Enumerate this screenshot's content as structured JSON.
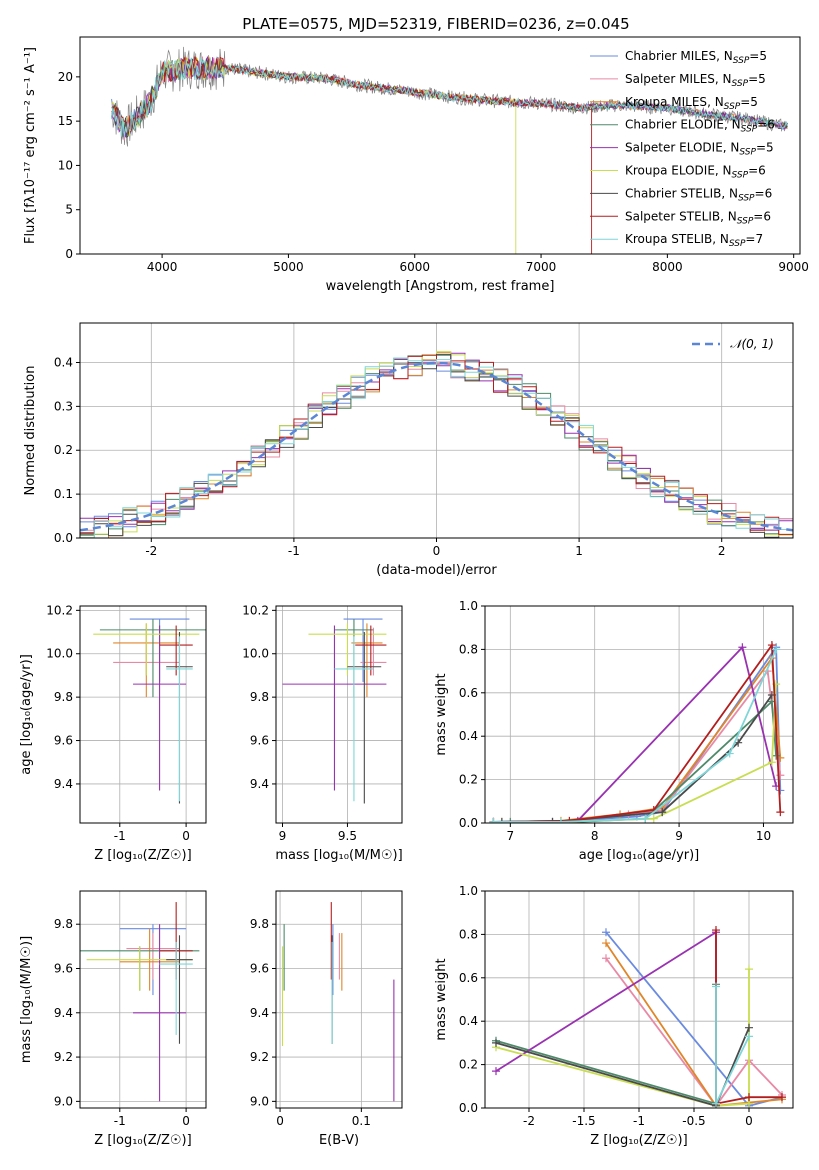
{
  "figure_title": "PLATE=0575, MJD=52319, FIBERID=0236, z=0.045",
  "models": [
    {
      "label": "Chabrier MILES",
      "nssp": "5",
      "color": "#6a8be0"
    },
    {
      "label": "Salpeter MILES",
      "nssp": "5",
      "color": "#e88aa6"
    },
    {
      "label": "Kroupa MILES",
      "nssp": "5",
      "color": "#e0862a"
    },
    {
      "label": "Chabrier ELODIE",
      "nssp": "6",
      "color": "#4e8a6a"
    },
    {
      "label": "Salpeter ELODIE",
      "nssp": "5",
      "color": "#9932b0"
    },
    {
      "label": "Kroupa ELODIE",
      "nssp": "6",
      "color": "#c9dd52"
    },
    {
      "label": "Chabrier STELIB",
      "nssp": "6",
      "color": "#4a4a4a"
    },
    {
      "label": "Salpeter STELIB",
      "nssp": "6",
      "color": "#b21e1e"
    },
    {
      "label": "Kroupa STELIB",
      "nssp": "7",
      "color": "#7fd6d8"
    }
  ],
  "chart_data": [
    {
      "id": "spectrum",
      "type": "line",
      "xlabel": "wavelength [Angstrom, rest frame]",
      "ylabel": "Flux [fλ10⁻¹⁷ erg cm⁻² s⁻¹ A⁻¹]",
      "xlim": [
        3350,
        9050
      ],
      "ylim": [
        0,
        24.5
      ],
      "xticks": [
        4000,
        5000,
        6000,
        7000,
        8000,
        9000
      ],
      "yticks": [
        0,
        5,
        10,
        15,
        20
      ],
      "legend_position": "top-right",
      "data_color": "#808080",
      "data_x": [
        3600,
        3700,
        3800,
        3900,
        4000,
        4200,
        4500,
        5000,
        5300,
        5600,
        6000,
        6300,
        6600,
        7000,
        7300,
        7600,
        8000,
        8300,
        8600,
        8900
      ],
      "data_y": [
        16.5,
        14,
        15.5,
        17,
        20.5,
        21,
        21,
        20,
        19.8,
        19,
        18.3,
        17.7,
        17.3,
        17,
        16.5,
        16.8,
        16.5,
        15.8,
        15.3,
        14.5
      ],
      "model_x_ranges": [
        [
          3600,
          8950
        ],
        [
          3600,
          8950
        ],
        [
          3900,
          8950
        ],
        [
          3600,
          8950
        ],
        [
          3600,
          8950
        ],
        [
          3600,
          6800
        ],
        [
          3600,
          8950
        ],
        [
          3600,
          7400
        ],
        [
          3600,
          8950
        ]
      ]
    },
    {
      "id": "residuals",
      "type": "histogram",
      "xlabel": "(data-model)/error",
      "ylabel": "Normed distribution",
      "xlim": [
        -2.5,
        2.5
      ],
      "ylim": [
        0,
        0.49
      ],
      "xticks": [
        -2,
        -1,
        0,
        1,
        2
      ],
      "yticks": [
        0.0,
        0.1,
        0.2,
        0.3,
        0.4
      ],
      "bin_width": 0.1,
      "reference_label": "𝒩(0, 1)",
      "reference_color": "#5b86d6",
      "legend_position": "top-right"
    },
    {
      "id": "age_vs_Z",
      "type": "errorbar",
      "xlabel": "Z [log₁₀(Z/Z☉)]",
      "ylabel": "age  [log₁₀(age/yr)]",
      "xlim": [
        -1.6,
        0.3
      ],
      "ylim": [
        9.22,
        10.22
      ],
      "xticks": [
        -1,
        0
      ],
      "yticks": [
        9.4,
        9.6,
        9.8,
        10.0,
        10.2
      ],
      "points": [
        {
          "x": -0.4,
          "xerr": 0.45,
          "y": 10.16,
          "ylo": 9.87,
          "yhi": 10.16
        },
        {
          "x": -0.6,
          "xerr": 0.5,
          "y": 9.96,
          "ylo": 9.9,
          "yhi": 10.12
        },
        {
          "x": -0.6,
          "xerr": 0.5,
          "y": 10.05,
          "ylo": 9.8,
          "yhi": 10.14
        },
        {
          "x": -0.5,
          "xerr": 0.8,
          "y": 10.11,
          "ylo": 9.8,
          "yhi": 10.16
        },
        {
          "x": -0.4,
          "xerr": 0.4,
          "y": 9.86,
          "ylo": 9.37,
          "yhi": 10.13
        },
        {
          "x": -0.6,
          "xerr": 0.8,
          "y": 10.09,
          "ylo": 9.9,
          "yhi": 10.14
        },
        {
          "x": -0.1,
          "xerr": 0.2,
          "y": 9.94,
          "ylo": 9.31,
          "yhi": 10.1
        },
        {
          "x": -0.15,
          "xerr": 0.25,
          "y": 10.04,
          "ylo": 9.9,
          "yhi": 10.13
        },
        {
          "x": -0.1,
          "xerr": 0.2,
          "y": 9.93,
          "ylo": 9.32,
          "yhi": 10.08
        }
      ]
    },
    {
      "id": "age_vs_mass",
      "type": "errorbar",
      "xlabel": "mass [log₁₀(M/M☉)]",
      "ylabel": "",
      "xlim": [
        8.95,
        9.92
      ],
      "ylim": [
        9.22,
        10.22
      ],
      "xticks": [
        9.0,
        9.5
      ],
      "yticks": [
        9.4,
        9.6,
        9.8,
        10.0,
        10.2
      ],
      "points": [
        {
          "x": 9.62,
          "xerr": 0.15,
          "y": 10.16,
          "ylo": 9.87,
          "yhi": 10.16
        },
        {
          "x": 9.7,
          "xerr": 0.1,
          "y": 9.96,
          "ylo": 9.9,
          "yhi": 10.12
        },
        {
          "x": 9.65,
          "xerr": 0.12,
          "y": 10.05,
          "ylo": 9.8,
          "yhi": 10.14
        },
        {
          "x": 9.55,
          "xerr": 0.15,
          "y": 10.11,
          "ylo": 9.8,
          "yhi": 10.16
        },
        {
          "x": 9.4,
          "xerr": 0.4,
          "y": 9.86,
          "ylo": 9.37,
          "yhi": 10.13
        },
        {
          "x": 9.5,
          "xerr": 0.3,
          "y": 10.09,
          "ylo": 9.9,
          "yhi": 10.14
        },
        {
          "x": 9.63,
          "xerr": 0.13,
          "y": 9.94,
          "ylo": 9.31,
          "yhi": 10.1
        },
        {
          "x": 9.68,
          "xerr": 0.12,
          "y": 10.04,
          "ylo": 9.9,
          "yhi": 10.13
        },
        {
          "x": 9.55,
          "xerr": 0.15,
          "y": 9.93,
          "ylo": 9.32,
          "yhi": 10.08
        }
      ]
    },
    {
      "id": "weight_vs_age",
      "type": "line",
      "xlabel": "age  [log₁₀(age/yr)]",
      "ylabel": "mass weight",
      "xlim": [
        6.7,
        10.35
      ],
      "ylim": [
        0,
        1.0
      ],
      "xticks": [
        7,
        8,
        9,
        10
      ],
      "yticks": [
        0.0,
        0.2,
        0.4,
        0.6,
        0.8,
        1.0
      ],
      "series": [
        {
          "x": [
            6.8,
            7.5,
            8.5,
            8.8,
            10.15,
            10.2
          ],
          "y": [
            0.005,
            0.005,
            0.03,
            0.05,
            0.81,
            0.15
          ]
        },
        {
          "x": [
            6.8,
            7.5,
            8.4,
            8.8,
            10.05,
            10.2
          ],
          "y": [
            0.005,
            0.005,
            0.04,
            0.06,
            0.7,
            0.22
          ]
        },
        {
          "x": [
            6.9,
            7.6,
            8.3,
            8.8,
            10.1,
            10.2
          ],
          "y": [
            0.005,
            0.01,
            0.04,
            0.07,
            0.76,
            0.3
          ]
        },
        {
          "x": [
            7.0,
            7.8,
            8.6,
            10.1,
            10.15
          ],
          "y": [
            0.005,
            0.005,
            0.02,
            0.56,
            0.31
          ]
        },
        {
          "x": [
            6.8,
            7.8,
            9.75,
            10.15
          ],
          "y": [
            0.005,
            0.01,
            0.81,
            0.17
          ]
        },
        {
          "x": [
            6.8,
            7.6,
            8.7,
            10.1,
            10.15
          ],
          "y": [
            0.005,
            0.005,
            0.02,
            0.28,
            0.64
          ]
        },
        {
          "x": [
            6.9,
            7.5,
            8.8,
            9.7,
            10.1
          ],
          "y": [
            0.005,
            0.005,
            0.05,
            0.37,
            0.59
          ]
        },
        {
          "x": [
            6.8,
            7.7,
            8.7,
            10.1,
            10.2
          ],
          "y": [
            0.005,
            0.01,
            0.06,
            0.82,
            0.05
          ]
        },
        {
          "x": [
            6.8,
            7.6,
            8.6,
            9.6,
            10.15
          ],
          "y": [
            0.005,
            0.005,
            0.02,
            0.32,
            0.8
          ]
        }
      ]
    },
    {
      "id": "mass_vs_Z",
      "type": "errorbar",
      "xlabel": "Z [log₁₀(Z/Z☉)]",
      "ylabel": "mass [log₁₀(M/M☉)]",
      "xlim": [
        -1.6,
        0.3
      ],
      "ylim": [
        8.97,
        9.95
      ],
      "xticks": [
        -1,
        0
      ],
      "yticks": [
        9.0,
        9.2,
        9.4,
        9.6,
        9.8
      ],
      "points": [
        {
          "x": -0.5,
          "xerr": 0.5,
          "y": 9.78,
          "ylo": 9.48,
          "yhi": 9.8
        },
        {
          "x": -0.5,
          "xerr": 0.4,
          "y": 9.69,
          "ylo": 9.55,
          "yhi": 9.76
        },
        {
          "x": -0.55,
          "xerr": 0.45,
          "y": 9.63,
          "ylo": 9.5,
          "yhi": 9.78
        },
        {
          "x": -0.7,
          "xerr": 0.9,
          "y": 9.68,
          "ylo": 9.5,
          "yhi": 9.7
        },
        {
          "x": -0.4,
          "xerr": 0.4,
          "y": 9.4,
          "ylo": 9.0,
          "yhi": 9.8
        },
        {
          "x": -0.7,
          "xerr": 0.8,
          "y": 9.64,
          "ylo": 9.5,
          "yhi": 9.7
        },
        {
          "x": -0.1,
          "xerr": 0.2,
          "y": 9.64,
          "ylo": 9.26,
          "yhi": 9.75
        },
        {
          "x": -0.15,
          "xerr": 0.25,
          "y": 9.68,
          "ylo": 9.55,
          "yhi": 9.9
        },
        {
          "x": -0.15,
          "xerr": 0.25,
          "y": 9.62,
          "ylo": 9.3,
          "yhi": 9.72
        }
      ]
    },
    {
      "id": "mass_vs_ebv",
      "type": "errorbar",
      "xlabel": "E(B-V)",
      "ylabel": "",
      "xlim": [
        -0.005,
        0.15
      ],
      "ylim": [
        8.97,
        9.95
      ],
      "xticks": [
        0.0,
        0.1
      ],
      "yticks": [
        9.0,
        9.2,
        9.4,
        9.6,
        9.8
      ],
      "points": [
        {
          "x": 0.065,
          "ylo": 9.48,
          "yhi": 9.8
        },
        {
          "x": 0.073,
          "ylo": 9.55,
          "yhi": 9.76
        },
        {
          "x": 0.076,
          "ylo": 9.5,
          "yhi": 9.76
        },
        {
          "x": 0.005,
          "ylo": 9.5,
          "yhi": 9.8
        },
        {
          "x": 0.14,
          "ylo": 9.0,
          "yhi": 9.55
        },
        {
          "x": 0.003,
          "ylo": 9.25,
          "yhi": 9.7
        },
        {
          "x": 0.064,
          "ylo": 9.26,
          "yhi": 9.75
        },
        {
          "x": 0.063,
          "ylo": 9.55,
          "yhi": 9.9
        },
        {
          "x": 0.064,
          "ylo": 9.26,
          "yhi": 9.72
        }
      ]
    },
    {
      "id": "weight_vs_Z",
      "type": "line",
      "xlabel": "Z [log₁₀(Z/Z☉)]",
      "ylabel": "mass weight",
      "xlim": [
        -2.4,
        0.4
      ],
      "ylim": [
        0,
        1.0
      ],
      "xticks": [
        -2.0,
        -1.5,
        -1.0,
        -0.5,
        0.0
      ],
      "yticks": [
        0.0,
        0.2,
        0.4,
        0.6,
        0.8,
        1.0
      ],
      "series": [
        {
          "x": [
            -1.3,
            0.0,
            0.3
          ],
          "y": [
            0.81,
            0.01,
            0.05
          ]
        },
        {
          "x": [
            -1.3,
            -0.3,
            0.0,
            0.3
          ],
          "y": [
            0.69,
            0.01,
            0.22,
            0.06
          ]
        },
        {
          "x": [
            -1.3,
            -0.3,
            0.3
          ],
          "y": [
            0.76,
            0.01,
            0.04
          ]
        },
        {
          "x": [
            -2.3,
            -0.3,
            -0.3
          ],
          "y": [
            0.31,
            0.02,
            0.57
          ]
        },
        {
          "x": [
            -2.3,
            -0.3,
            -0.3
          ],
          "y": [
            0.17,
            0.81,
            0.02
          ]
        },
        {
          "x": [
            -2.3,
            -0.3,
            0.0,
            0.0
          ],
          "y": [
            0.28,
            0.01,
            0.02,
            0.64
          ]
        },
        {
          "x": [
            -2.3,
            -0.3,
            0.0
          ],
          "y": [
            0.3,
            0.01,
            0.37
          ]
        },
        {
          "x": [
            -0.3,
            -0.3,
            0.0,
            0.3
          ],
          "y": [
            0.82,
            0.02,
            0.05,
            0.05
          ]
        },
        {
          "x": [
            -0.3,
            -0.3,
            0.0
          ],
          "y": [
            0.56,
            0.02,
            0.33
          ]
        }
      ]
    }
  ]
}
